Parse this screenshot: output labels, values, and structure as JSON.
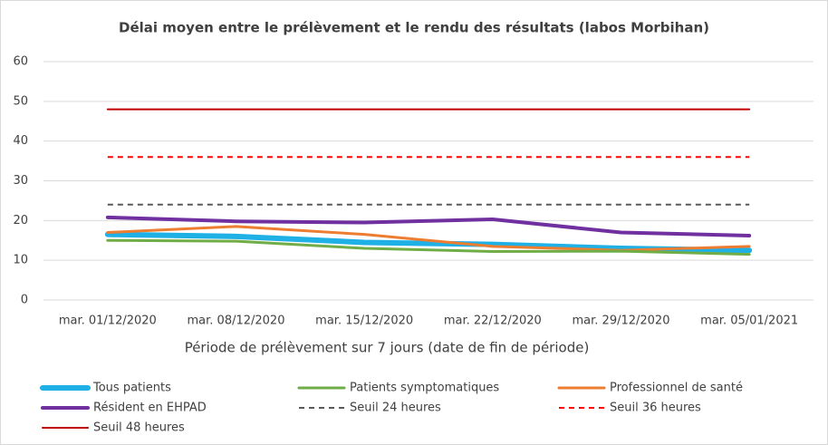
{
  "chart_data": {
    "type": "line",
    "title": "Délai moyen entre le prélèvement et le rendu des résultats (labos Morbihan)",
    "x_label": "Période de prélèvement sur 7 jours (date de fin de période)",
    "categories": [
      "mar. 01/12/2020",
      "mar. 08/12/2020",
      "mar. 15/12/2020",
      "mar. 22/12/2020",
      "mar. 29/12/2020",
      "mar. 05/01/2021"
    ],
    "series": [
      {
        "name": "Tous patients",
        "color": "#1fb0e6",
        "values": [
          16.5,
          16,
          14.5,
          14,
          13,
          12.5
        ]
      },
      {
        "name": "Patients symptomatiques",
        "color": "#70ad47",
        "values": [
          15,
          14.8,
          13,
          12.2,
          12.3,
          11.5
        ]
      },
      {
        "name": "Professionnel de santé",
        "color": "#ed7d31",
        "values": [
          17,
          18.5,
          16.5,
          13.5,
          12.5,
          13.5
        ]
      },
      {
        "name": "Résident en EHPAD",
        "color": "#7030a0",
        "values": [
          20.8,
          19.8,
          19.5,
          20.3,
          17,
          16.2
        ]
      },
      {
        "name": "Seuil 24 heures",
        "color": "#595959",
        "dashed": true,
        "values": [
          24,
          24,
          24,
          24,
          24,
          24
        ]
      },
      {
        "name": "Seuil 36 heures",
        "color": "#ff0000",
        "dashed": true,
        "values": [
          36,
          36,
          36,
          36,
          36,
          36
        ]
      },
      {
        "name": "Seuil 48 heures",
        "color": "#c00000",
        "values": [
          48,
          48,
          48,
          48,
          48,
          48
        ]
      }
    ],
    "ylim": [
      0,
      60
    ],
    "yticks": [
      0,
      10,
      20,
      30,
      40,
      50,
      60
    ],
    "grid": true,
    "legend": "bottom"
  }
}
